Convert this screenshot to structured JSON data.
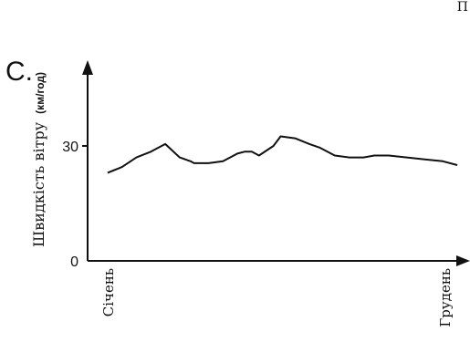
{
  "panel_label": "C.",
  "corner_mark": "П",
  "chart_data": {
    "type": "line",
    "title": "",
    "ylabel_main": "Швидкість вітру",
    "ylabel_unit": "(км/год)",
    "xlabel": "",
    "x_tick_labels": [
      "Січень",
      "Грудень"
    ],
    "y_ticks": [
      0,
      30
    ],
    "ylim": [
      0,
      55
    ],
    "xlim": [
      0,
      1
    ],
    "grid": false,
    "legend": "none",
    "line_color": "#111111",
    "series": [
      {
        "x": [
          0.02,
          0.06,
          0.1,
          0.14,
          0.18,
          0.22,
          0.25,
          0.26,
          0.28,
          0.3,
          0.34,
          0.38,
          0.4,
          0.42,
          0.44,
          0.48,
          0.5,
          0.54,
          0.58,
          0.61,
          0.65,
          0.69,
          0.73,
          0.76,
          0.8,
          0.85,
          0.9,
          0.95,
          0.99
        ],
        "y": [
          23,
          24.5,
          27,
          28.5,
          30.5,
          27,
          26,
          25.5,
          25.5,
          25.5,
          26,
          28,
          28.5,
          28.5,
          27.5,
          30,
          32.5,
          32,
          30.5,
          29.5,
          27.5,
          27,
          27,
          27.5,
          27.5,
          27,
          26.5,
          26,
          25
        ]
      }
    ]
  }
}
